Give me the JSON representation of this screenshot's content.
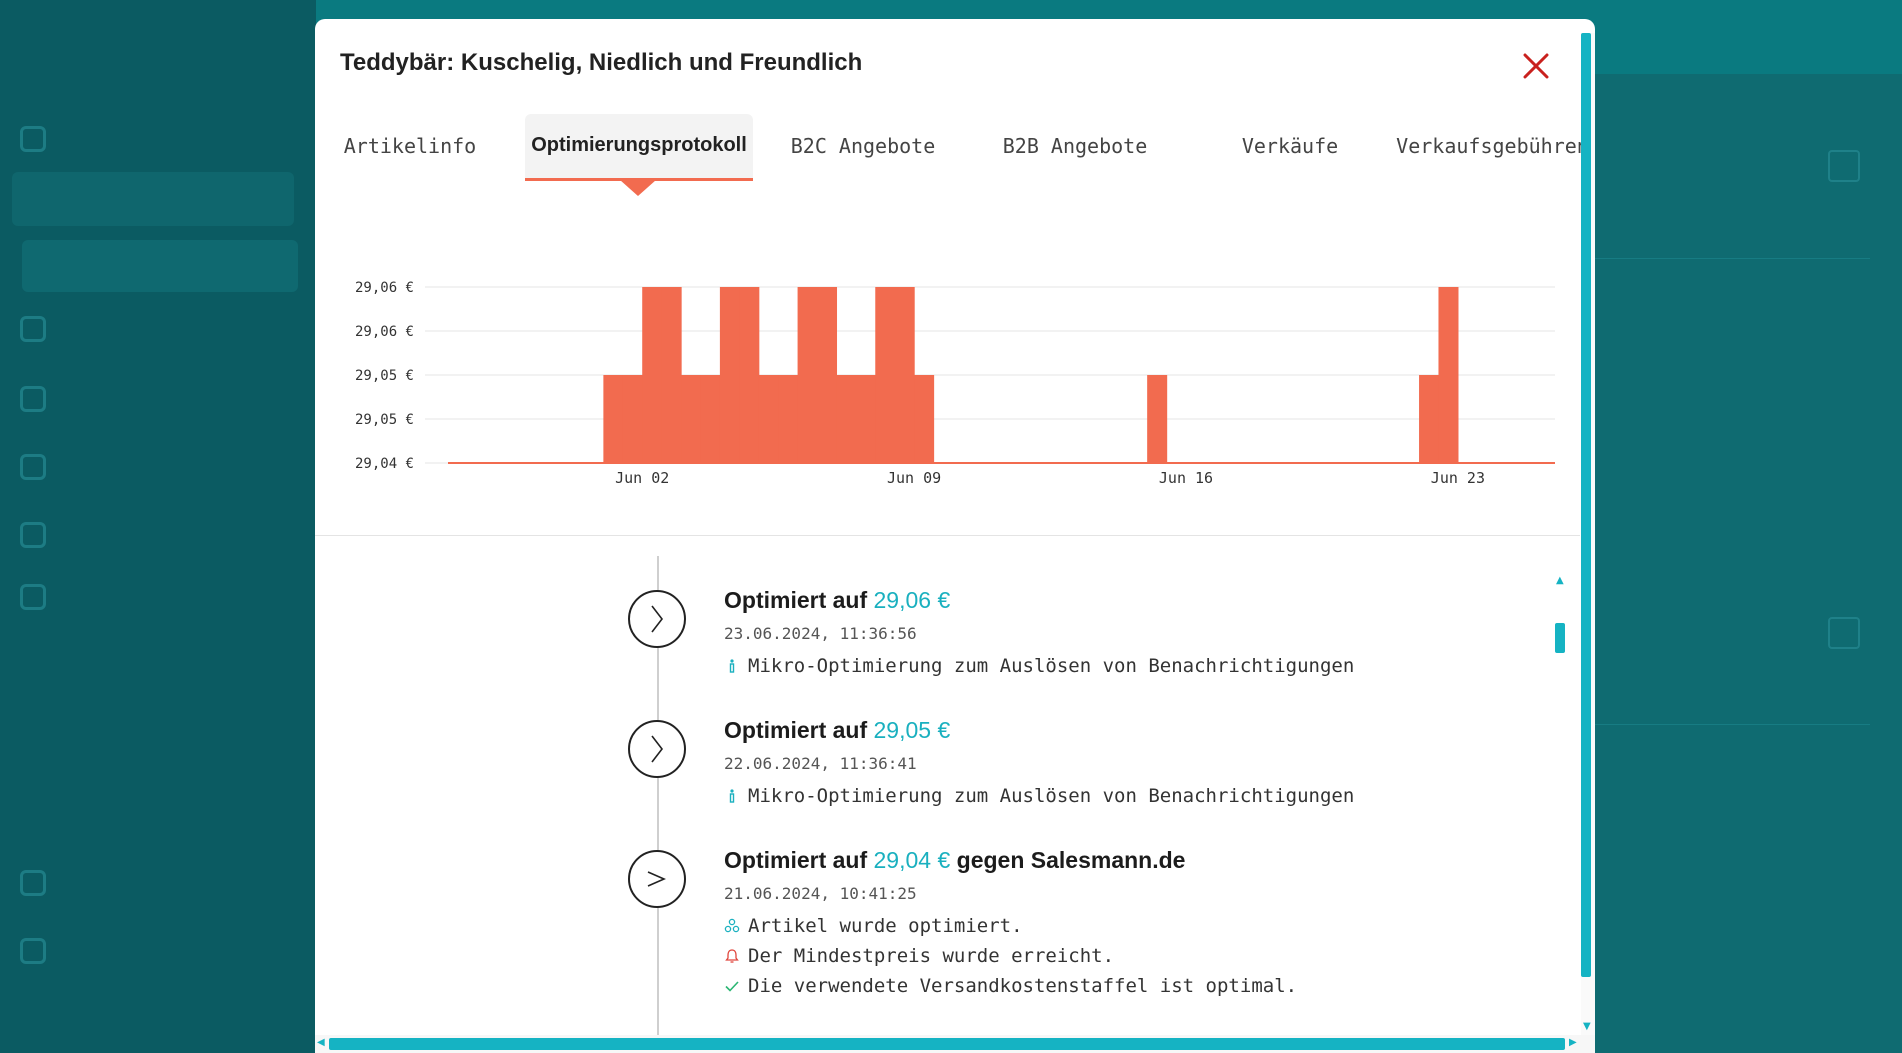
{
  "modal": {
    "title": "Teddybär: Kuschelig, Niedlich und Freundlich"
  },
  "tabs": [
    {
      "label": "Artikelinfo"
    },
    {
      "label": "Optimierungsprotokoll"
    },
    {
      "label": "B2C Angebote"
    },
    {
      "label": "B2B Angebote"
    },
    {
      "label": "Verkäufe"
    },
    {
      "label": "Verkaufsgebühren"
    }
  ],
  "active_tab": "Optimierungsprotokoll",
  "colors": {
    "accent": "#f26b4f",
    "price": "#1ab0bf",
    "scrollbar": "#15b3c3",
    "close": "#c9211e"
  },
  "chart_data": {
    "type": "area",
    "y_tick_labels": [
      "29,06 €",
      "29,06 €",
      "29,05 €",
      "29,05 €",
      "29,04 €"
    ],
    "x_tick_labels": [
      "Jun 02",
      "Jun 09",
      "Jun 16",
      "Jun 23"
    ],
    "ylim": [
      29.04,
      29.06
    ],
    "x_start": "2024-05-28",
    "step_days": 0.5,
    "values": [
      29.04,
      29.04,
      29.04,
      29.04,
      29.04,
      29.04,
      29.04,
      29.04,
      29.05,
      29.05,
      29.06,
      29.06,
      29.05,
      29.05,
      29.06,
      29.06,
      29.05,
      29.05,
      29.06,
      29.06,
      29.05,
      29.05,
      29.06,
      29.06,
      29.05,
      29.04,
      29.04,
      29.04,
      29.04,
      29.04,
      29.04,
      29.04,
      29.04,
      29.04,
      29.04,
      29.04,
      29.05,
      29.04,
      29.04,
      29.04,
      29.04,
      29.04,
      29.04,
      29.04,
      29.04,
      29.04,
      29.04,
      29.04,
      29.04,
      29.04,
      29.05,
      29.06,
      29.04,
      29.04,
      29.04,
      29.04,
      29.04
    ],
    "color": "#f26b4f",
    "grid": true
  },
  "log_entries": [
    {
      "title_prefix": "Optimiert auf",
      "price": "29,06 €",
      "suffix": "",
      "date": "23.06.2024, 11:36:56",
      "notes": [
        {
          "icon": "info-icon",
          "text": "Mikro-Optimierung zum Auslösen von Benachrichtigungen"
        }
      ]
    },
    {
      "title_prefix": "Optimiert auf",
      "price": "29,05 €",
      "suffix": "",
      "date": "22.06.2024, 11:36:41",
      "notes": [
        {
          "icon": "info-icon",
          "text": "Mikro-Optimierung zum Auslösen von Benachrichtigungen"
        }
      ]
    },
    {
      "title_prefix": "Optimiert auf",
      "price": "29,04 €",
      "suffix": "gegen Salesmann.de",
      "date": "21.06.2024, 10:41:25",
      "notes": [
        {
          "icon": "optimize-icon",
          "text": "Artikel wurde optimiert."
        },
        {
          "icon": "bell-icon",
          "text": "Der Mindestpreis wurde erreicht."
        },
        {
          "icon": "check-icon",
          "text": "Die verwendete Versandkostenstaffel ist optimal."
        }
      ]
    }
  ]
}
